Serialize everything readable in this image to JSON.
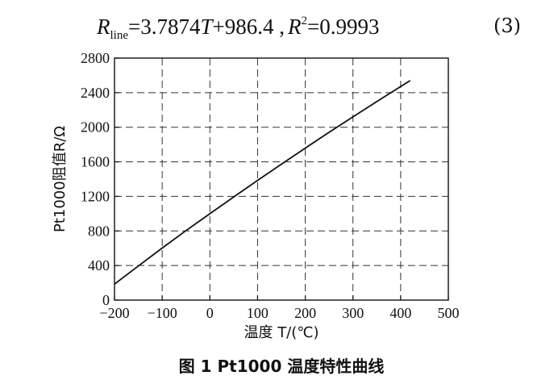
{
  "equation": {
    "lhs": "R",
    "lhs_sub": "line",
    "rhs": "=3.7874",
    "var_t": "T",
    "const": "+986.4 ,",
    "r": "R",
    "r_sup": "2",
    "r_value": "=0.9993",
    "number": "(3)"
  },
  "caption": "图 1   Pt1000 温度特性曲线",
  "chart_data": {
    "type": "line",
    "title": "",
    "xlabel": "温度 T/(℃)",
    "ylabel": "Pt1000阻值R/Ω",
    "xlim": [
      -200,
      500
    ],
    "ylim": [
      0,
      2800
    ],
    "xticks": [
      -200,
      -100,
      0,
      100,
      200,
      300,
      400,
      500
    ],
    "yticks": [
      0,
      400,
      800,
      1200,
      1600,
      2000,
      2400,
      2800
    ],
    "grid": true,
    "series": [
      {
        "x": [
          -200,
          -150,
          -100,
          -50,
          0,
          50,
          100,
          150,
          200,
          250,
          300,
          350,
          400,
          420
        ],
        "y": [
          185,
          395,
          602,
          805,
          1000,
          1194,
          1385,
          1573,
          1758,
          1941,
          2120,
          2297,
          2471,
          2540
        ]
      }
    ]
  }
}
